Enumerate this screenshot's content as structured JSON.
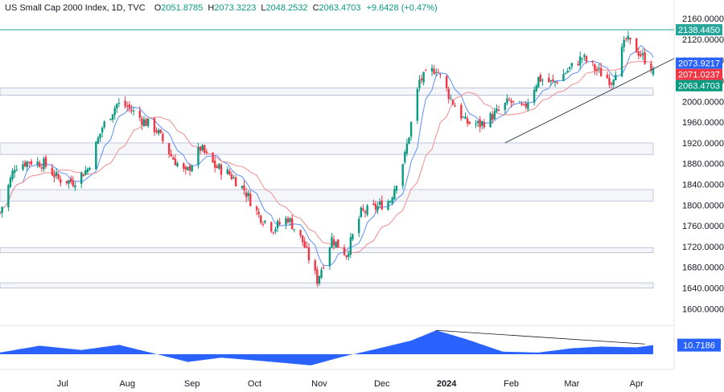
{
  "header": {
    "title": "US Small Cap 2000 Index, 1D, TVC",
    "open_label": "O",
    "open": "2051.8785",
    "high_label": "H",
    "high": "2073.3223",
    "low_label": "L",
    "low": "2048.2532",
    "close_label": "C",
    "close": "2063.4703",
    "change": "+9.6428 (+0.47%)"
  },
  "price_tags": [
    {
      "label": "2138.4450",
      "value": 2138.445,
      "color": "#26a69a"
    },
    {
      "label": "2073.9217",
      "value": 2073.9217,
      "color": "#2962ff"
    },
    {
      "label": "2071.0237",
      "value": 2071.0237,
      "color": "#f23645"
    },
    {
      "label": "2063.4703",
      "value": 2063.4703,
      "color": "#089981"
    }
  ],
  "indicator_value": "10.7186",
  "colors": {
    "up": "#089981",
    "down": "#f23645",
    "ma_fast": "#5b8ff9",
    "ma_slow": "#f08d8d",
    "zone": "#9aa4c7",
    "indicator": "#2962ff",
    "resistance": "#26a69a"
  },
  "chart_data": {
    "type": "candlestick",
    "y_ticks": [
      "2160.0000",
      "2120.0000",
      "2080.0000",
      "2040.0000",
      "2000.0000",
      "1960.0000",
      "1920.0000",
      "1880.0000",
      "1840.0000",
      "1800.0000",
      "1760.0000",
      "1720.0000",
      "1680.0000",
      "1640.0000",
      "1600.0000"
    ],
    "ylim": [
      1585,
      2168
    ],
    "x_labels": [
      "Jul",
      "Aug",
      "Sep",
      "Oct",
      "Nov",
      "Dec",
      "2024",
      "Feb",
      "Mar",
      "Apr"
    ],
    "x_label_dates": [
      "2023-07-01",
      "2023-08-01",
      "2023-09-01",
      "2023-10-01",
      "2023-11-01",
      "2023-12-01",
      "2024-01-01",
      "2024-02-01",
      "2024-03-01",
      "2024-04-01"
    ],
    "x_range": [
      "2023-06-01",
      "2024-04-09"
    ],
    "resistance_level": 2138.445,
    "horizontal_zones": [
      [
        2012,
        2026
      ],
      [
        1898,
        1920
      ],
      [
        1808,
        1830
      ],
      [
        1708,
        1718
      ],
      [
        1640,
        1650
      ]
    ],
    "trendline": {
      "from": [
        "2024-01-29",
        1920
      ],
      "to": [
        "2024-04-09",
        2083
      ]
    },
    "price_anchors": [
      {
        "date": "2023-06-01",
        "close": 1785
      },
      {
        "date": "2023-06-08",
        "close": 1875
      },
      {
        "date": "2023-06-15",
        "close": 1885
      },
      {
        "date": "2023-06-22",
        "close": 1880
      },
      {
        "date": "2023-06-29",
        "close": 1850
      },
      {
        "date": "2023-07-06",
        "close": 1845
      },
      {
        "date": "2023-07-13",
        "close": 1870
      },
      {
        "date": "2023-07-20",
        "close": 1950
      },
      {
        "date": "2023-07-27",
        "close": 1995
      },
      {
        "date": "2023-08-01",
        "close": 1990
      },
      {
        "date": "2023-08-08",
        "close": 1965
      },
      {
        "date": "2023-08-15",
        "close": 1945
      },
      {
        "date": "2023-08-22",
        "close": 1895
      },
      {
        "date": "2023-08-29",
        "close": 1860
      },
      {
        "date": "2023-09-05",
        "close": 1910
      },
      {
        "date": "2023-09-12",
        "close": 1875
      },
      {
        "date": "2023-09-19",
        "close": 1860
      },
      {
        "date": "2023-09-26",
        "close": 1830
      },
      {
        "date": "2023-10-03",
        "close": 1780
      },
      {
        "date": "2023-10-10",
        "close": 1755
      },
      {
        "date": "2023-10-17",
        "close": 1775
      },
      {
        "date": "2023-10-24",
        "close": 1730
      },
      {
        "date": "2023-10-31",
        "close": 1655
      },
      {
        "date": "2023-11-07",
        "close": 1735
      },
      {
        "date": "2023-11-14",
        "close": 1705
      },
      {
        "date": "2023-11-21",
        "close": 1785
      },
      {
        "date": "2023-11-28",
        "close": 1795
      },
      {
        "date": "2023-12-05",
        "close": 1810
      },
      {
        "date": "2023-12-12",
        "close": 1895
      },
      {
        "date": "2023-12-19",
        "close": 2040
      },
      {
        "date": "2023-12-27",
        "close": 2065
      },
      {
        "date": "2024-01-03",
        "close": 2005
      },
      {
        "date": "2024-01-10",
        "close": 1960
      },
      {
        "date": "2024-01-17",
        "close": 1955
      },
      {
        "date": "2024-01-24",
        "close": 1975
      },
      {
        "date": "2024-01-31",
        "close": 2000
      },
      {
        "date": "2024-02-07",
        "close": 1985
      },
      {
        "date": "2024-02-14",
        "close": 2045
      },
      {
        "date": "2024-02-21",
        "close": 2035
      },
      {
        "date": "2024-02-28",
        "close": 2060
      },
      {
        "date": "2024-03-06",
        "close": 2085
      },
      {
        "date": "2024-03-13",
        "close": 2060
      },
      {
        "date": "2024-03-20",
        "close": 2040
      },
      {
        "date": "2024-03-27",
        "close": 2120
      },
      {
        "date": "2024-04-01",
        "close": 2100
      },
      {
        "date": "2024-04-09",
        "close": 2063.4703
      }
    ],
    "indicator_anchors": [
      {
        "date": "2023-06-01",
        "value": 2
      },
      {
        "date": "2023-06-20",
        "value": 10
      },
      {
        "date": "2023-07-10",
        "value": 5
      },
      {
        "date": "2023-07-28",
        "value": 11
      },
      {
        "date": "2023-08-12",
        "value": 2
      },
      {
        "date": "2023-08-30",
        "value": -9
      },
      {
        "date": "2023-09-15",
        "value": -4
      },
      {
        "date": "2023-10-05",
        "value": -8
      },
      {
        "date": "2023-10-28",
        "value": -13
      },
      {
        "date": "2023-11-12",
        "value": -3
      },
      {
        "date": "2023-11-28",
        "value": 6
      },
      {
        "date": "2023-12-15",
        "value": 16
      },
      {
        "date": "2023-12-27",
        "value": 28
      },
      {
        "date": "2024-01-10",
        "value": 18
      },
      {
        "date": "2024-01-28",
        "value": 3
      },
      {
        "date": "2024-02-14",
        "value": 2
      },
      {
        "date": "2024-03-01",
        "value": 7
      },
      {
        "date": "2024-03-15",
        "value": 9
      },
      {
        "date": "2024-04-01",
        "value": 8
      },
      {
        "date": "2024-04-09",
        "value": 10.7186
      }
    ],
    "indicator_ylim": [
      -16,
      32
    ]
  }
}
